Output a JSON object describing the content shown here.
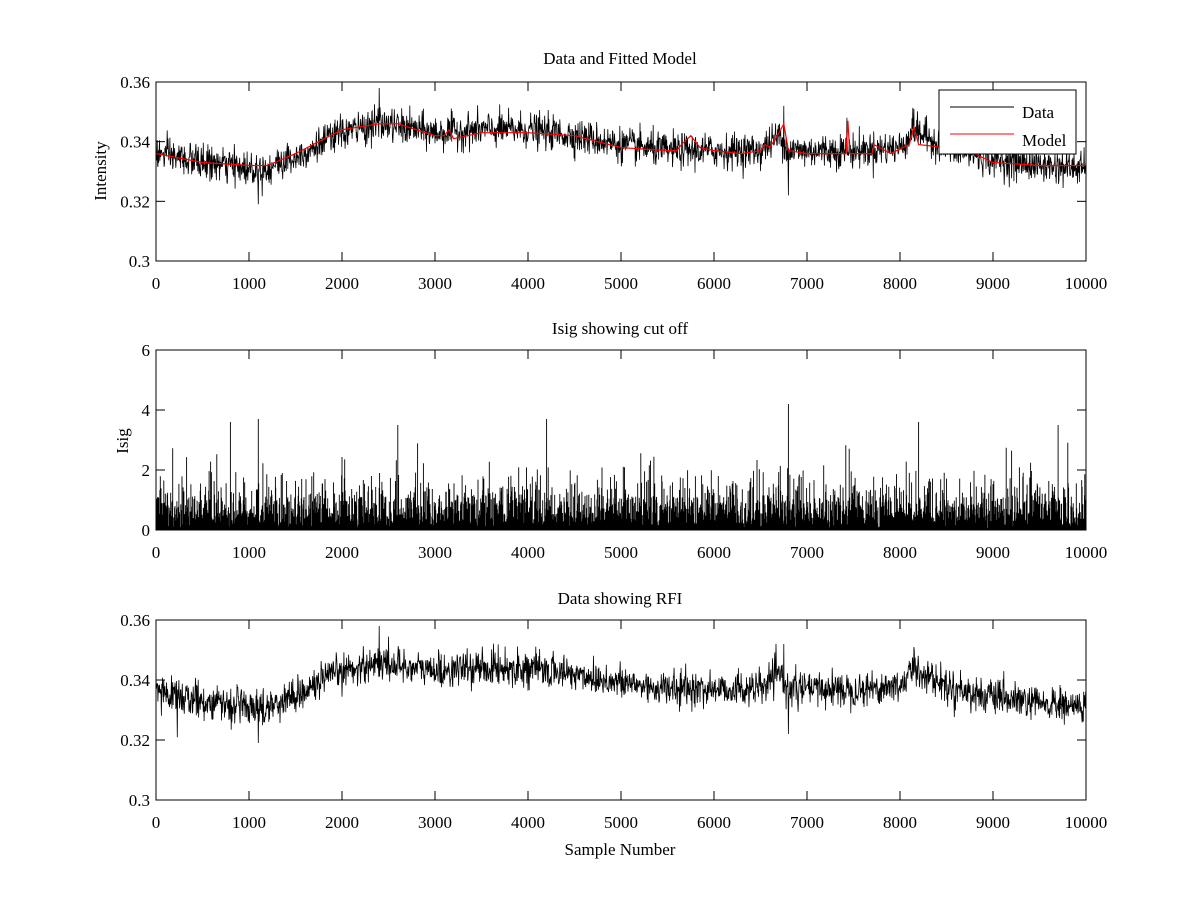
{
  "chart_data": [
    {
      "type": "line",
      "title": "Data and Fitted Model",
      "xlabel": "",
      "ylabel": "Intensity",
      "xlim": [
        0,
        10000
      ],
      "ylim": [
        0.3,
        0.36
      ],
      "xticks": [
        0,
        1000,
        2000,
        3000,
        4000,
        5000,
        6000,
        7000,
        8000,
        9000,
        10000
      ],
      "yticks": [
        0.3,
        0.32,
        0.34,
        0.36
      ],
      "ytick_labels": [
        "0.3",
        "0.32",
        "0.34",
        "0.36"
      ],
      "legend": {
        "position": "top-right",
        "entries": [
          "Data",
          "Model"
        ]
      },
      "series": [
        {
          "name": "Data",
          "color": "#000000",
          "kind": "noisy",
          "noise_amplitude": 0.008,
          "baseline": {
            "x": [
              0,
              500,
              1000,
              1200,
              1500,
              2000,
              2400,
              3000,
              3500,
              4000,
              4500,
              5000,
              5500,
              6000,
              6500,
              6700,
              6800,
              7000,
              7500,
              8000,
              8150,
              8500,
              9000,
              9500,
              10000
            ],
            "y": [
              0.336,
              0.333,
              0.331,
              0.331,
              0.335,
              0.343,
              0.346,
              0.343,
              0.344,
              0.344,
              0.342,
              0.339,
              0.337,
              0.337,
              0.337,
              0.342,
              0.337,
              0.337,
              0.337,
              0.338,
              0.344,
              0.338,
              0.334,
              0.332,
              0.331
            ]
          },
          "spikes": [
            {
              "x": 1100,
              "y": 0.319
            },
            {
              "x": 2400,
              "y": 0.358
            },
            {
              "x": 6750,
              "y": 0.352
            },
            {
              "x": 6800,
              "y": 0.322
            },
            {
              "x": 8150,
              "y": 0.351
            },
            {
              "x": 7430,
              "y": 0.348
            }
          ]
        },
        {
          "name": "Model",
          "color": "#ff0000",
          "kind": "line",
          "x": [
            0,
            500,
            1000,
            1200,
            1500,
            2000,
            2400,
            2600,
            3000,
            3100,
            3150,
            3200,
            3500,
            4000,
            4500,
            5000,
            5500,
            5600,
            5650,
            5750,
            5850,
            6000,
            6300,
            6500,
            6550,
            6600,
            6700,
            6750,
            6800,
            7000,
            7420,
            7440,
            7460,
            7700,
            7720,
            7900,
            8100,
            8150,
            8200,
            8500,
            8800,
            9000,
            9500,
            10000
          ],
          "y": [
            0.336,
            0.333,
            0.332,
            0.332,
            0.336,
            0.344,
            0.346,
            0.346,
            0.342,
            0.342,
            0.344,
            0.341,
            0.343,
            0.343,
            0.342,
            0.338,
            0.337,
            0.337,
            0.339,
            0.342,
            0.338,
            0.337,
            0.336,
            0.337,
            0.339,
            0.338,
            0.343,
            0.346,
            0.337,
            0.336,
            0.336,
            0.347,
            0.336,
            0.336,
            0.339,
            0.336,
            0.339,
            0.345,
            0.339,
            0.338,
            0.336,
            0.333,
            0.332,
            0.332
          ]
        }
      ]
    },
    {
      "type": "line",
      "title": "Isig showing cut off",
      "xlabel": "",
      "ylabel": "Isig",
      "xlim": [
        0,
        10000
      ],
      "ylim": [
        0,
        6
      ],
      "xticks": [
        0,
        1000,
        2000,
        3000,
        4000,
        5000,
        6000,
        7000,
        8000,
        9000,
        10000
      ],
      "yticks": [
        0,
        2,
        4,
        6
      ],
      "ytick_labels": [
        "0",
        "2",
        "4",
        "6"
      ],
      "series": [
        {
          "name": "Isig",
          "color": "#000000",
          "kind": "isig",
          "typical_max": 2.0,
          "spikes": [
            {
              "x": 800,
              "y": 3.6
            },
            {
              "x": 1100,
              "y": 3.7
            },
            {
              "x": 2600,
              "y": 3.5
            },
            {
              "x": 4200,
              "y": 3.7
            },
            {
              "x": 6800,
              "y": 4.2
            },
            {
              "x": 8200,
              "y": 3.6
            },
            {
              "x": 9700,
              "y": 3.5
            }
          ]
        }
      ]
    },
    {
      "type": "line",
      "title": "Data showing RFI",
      "xlabel": "Sample Number",
      "ylabel": "",
      "xlim": [
        0,
        10000
      ],
      "ylim": [
        0.3,
        0.36
      ],
      "xticks": [
        0,
        1000,
        2000,
        3000,
        4000,
        5000,
        6000,
        7000,
        8000,
        9000,
        10000
      ],
      "yticks": [
        0.3,
        0.32,
        0.34,
        0.36
      ],
      "ytick_labels": [
        "0.3",
        "0.32",
        "0.34",
        "0.36"
      ],
      "series": [
        {
          "name": "Data",
          "color": "#000000",
          "kind": "noisy",
          "noise_amplitude": 0.008,
          "baseline": {
            "x": [
              0,
              500,
              1000,
              1200,
              1500,
              2000,
              2400,
              3000,
              3500,
              4000,
              4500,
              5000,
              5500,
              6000,
              6500,
              6700,
              6800,
              7000,
              7500,
              8000,
              8150,
              8500,
              9000,
              9500,
              10000
            ],
            "y": [
              0.336,
              0.333,
              0.331,
              0.331,
              0.335,
              0.343,
              0.346,
              0.343,
              0.344,
              0.344,
              0.342,
              0.339,
              0.337,
              0.337,
              0.337,
              0.342,
              0.337,
              0.337,
              0.337,
              0.338,
              0.344,
              0.338,
              0.334,
              0.332,
              0.331
            ]
          },
          "spikes": [
            {
              "x": 1100,
              "y": 0.319
            },
            {
              "x": 2400,
              "y": 0.358
            },
            {
              "x": 6750,
              "y": 0.352
            },
            {
              "x": 6800,
              "y": 0.322
            },
            {
              "x": 8150,
              "y": 0.351
            }
          ]
        }
      ]
    }
  ]
}
